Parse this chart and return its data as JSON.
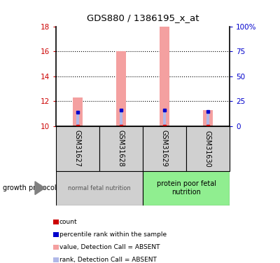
{
  "title": "GDS880 / 1386195_x_at",
  "samples": [
    "GSM31627",
    "GSM31628",
    "GSM31629",
    "GSM31630"
  ],
  "ylim": [
    10,
    18
  ],
  "yticks_left": [
    10,
    12,
    14,
    16,
    18
  ],
  "yticks_right_labels": [
    "0",
    "25",
    "50",
    "75",
    "100%"
  ],
  "left_tick_color": "#cc0000",
  "right_tick_color": "#0000cc",
  "bar_values": [
    12.3,
    16.0,
    18.0,
    11.3
  ],
  "rank_values": [
    11.1,
    11.3,
    11.3,
    11.2
  ],
  "bar_color": "#f4a0a0",
  "rank_bar_color": "#b0b8e8",
  "dot_color_red": "#cc0000",
  "dot_color_blue": "#0000cc",
  "group1_label": "normal fetal nutrition",
  "group2_label": "protein poor fetal\nnutrition",
  "group1_bg": "#d0d0d0",
  "group2_bg": "#90ee90",
  "sample_area_bg": "#d0d0d0",
  "base_value": 10,
  "legend_items": [
    {
      "color": "#cc0000",
      "label": "count"
    },
    {
      "color": "#0000cc",
      "label": "percentile rank within the sample"
    },
    {
      "color": "#f4a0a0",
      "label": "value, Detection Call = ABSENT"
    },
    {
      "color": "#b0b8e8",
      "label": "rank, Detection Call = ABSENT"
    }
  ],
  "growth_protocol_label": "growth protocol"
}
